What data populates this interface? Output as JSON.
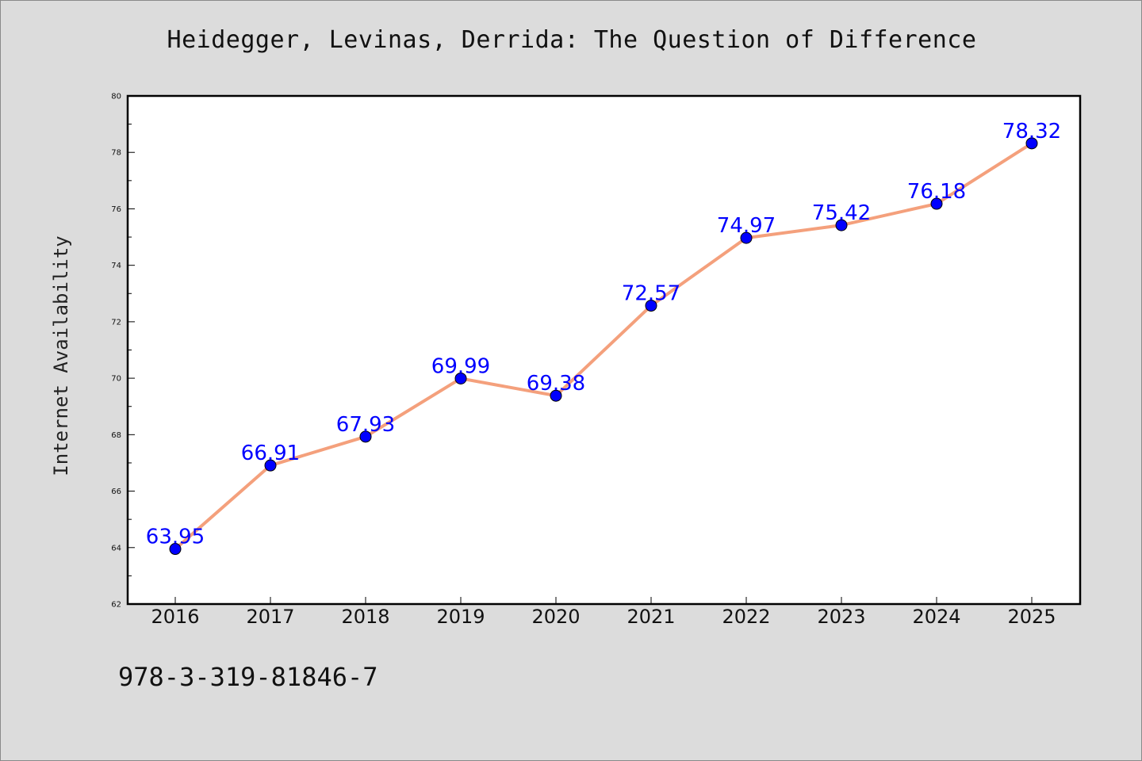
{
  "chart_data": {
    "type": "line",
    "title": "Heidegger, Levinas, Derrida: The Question of Difference",
    "xlabel": "",
    "ylabel": "Internet Availability",
    "x": [
      "2016",
      "2017",
      "2018",
      "2019",
      "2020",
      "2021",
      "2022",
      "2023",
      "2024",
      "2025"
    ],
    "series": [
      {
        "values": [
          63.95,
          66.91,
          67.93,
          69.99,
          69.38,
          72.57,
          74.97,
          75.42,
          76.18,
          78.32
        ]
      }
    ],
    "data_labels": [
      "63.95",
      "66.91",
      "67.93",
      "69.99",
      "69.38",
      "72.57",
      "74.97",
      "75.42",
      "76.18",
      "78.32"
    ],
    "ylim": [
      62,
      80
    ],
    "yticks": [
      62,
      64,
      66,
      68,
      70,
      72,
      74,
      76,
      78,
      80
    ],
    "grid": false,
    "line_color": "#f4a07c",
    "marker_color": "#0000ff",
    "label_color": "#0000ff",
    "background": "#dcdcdc",
    "plot_background": "#ffffff"
  },
  "footer": {
    "isbn": "978-3-319-81846-7"
  }
}
